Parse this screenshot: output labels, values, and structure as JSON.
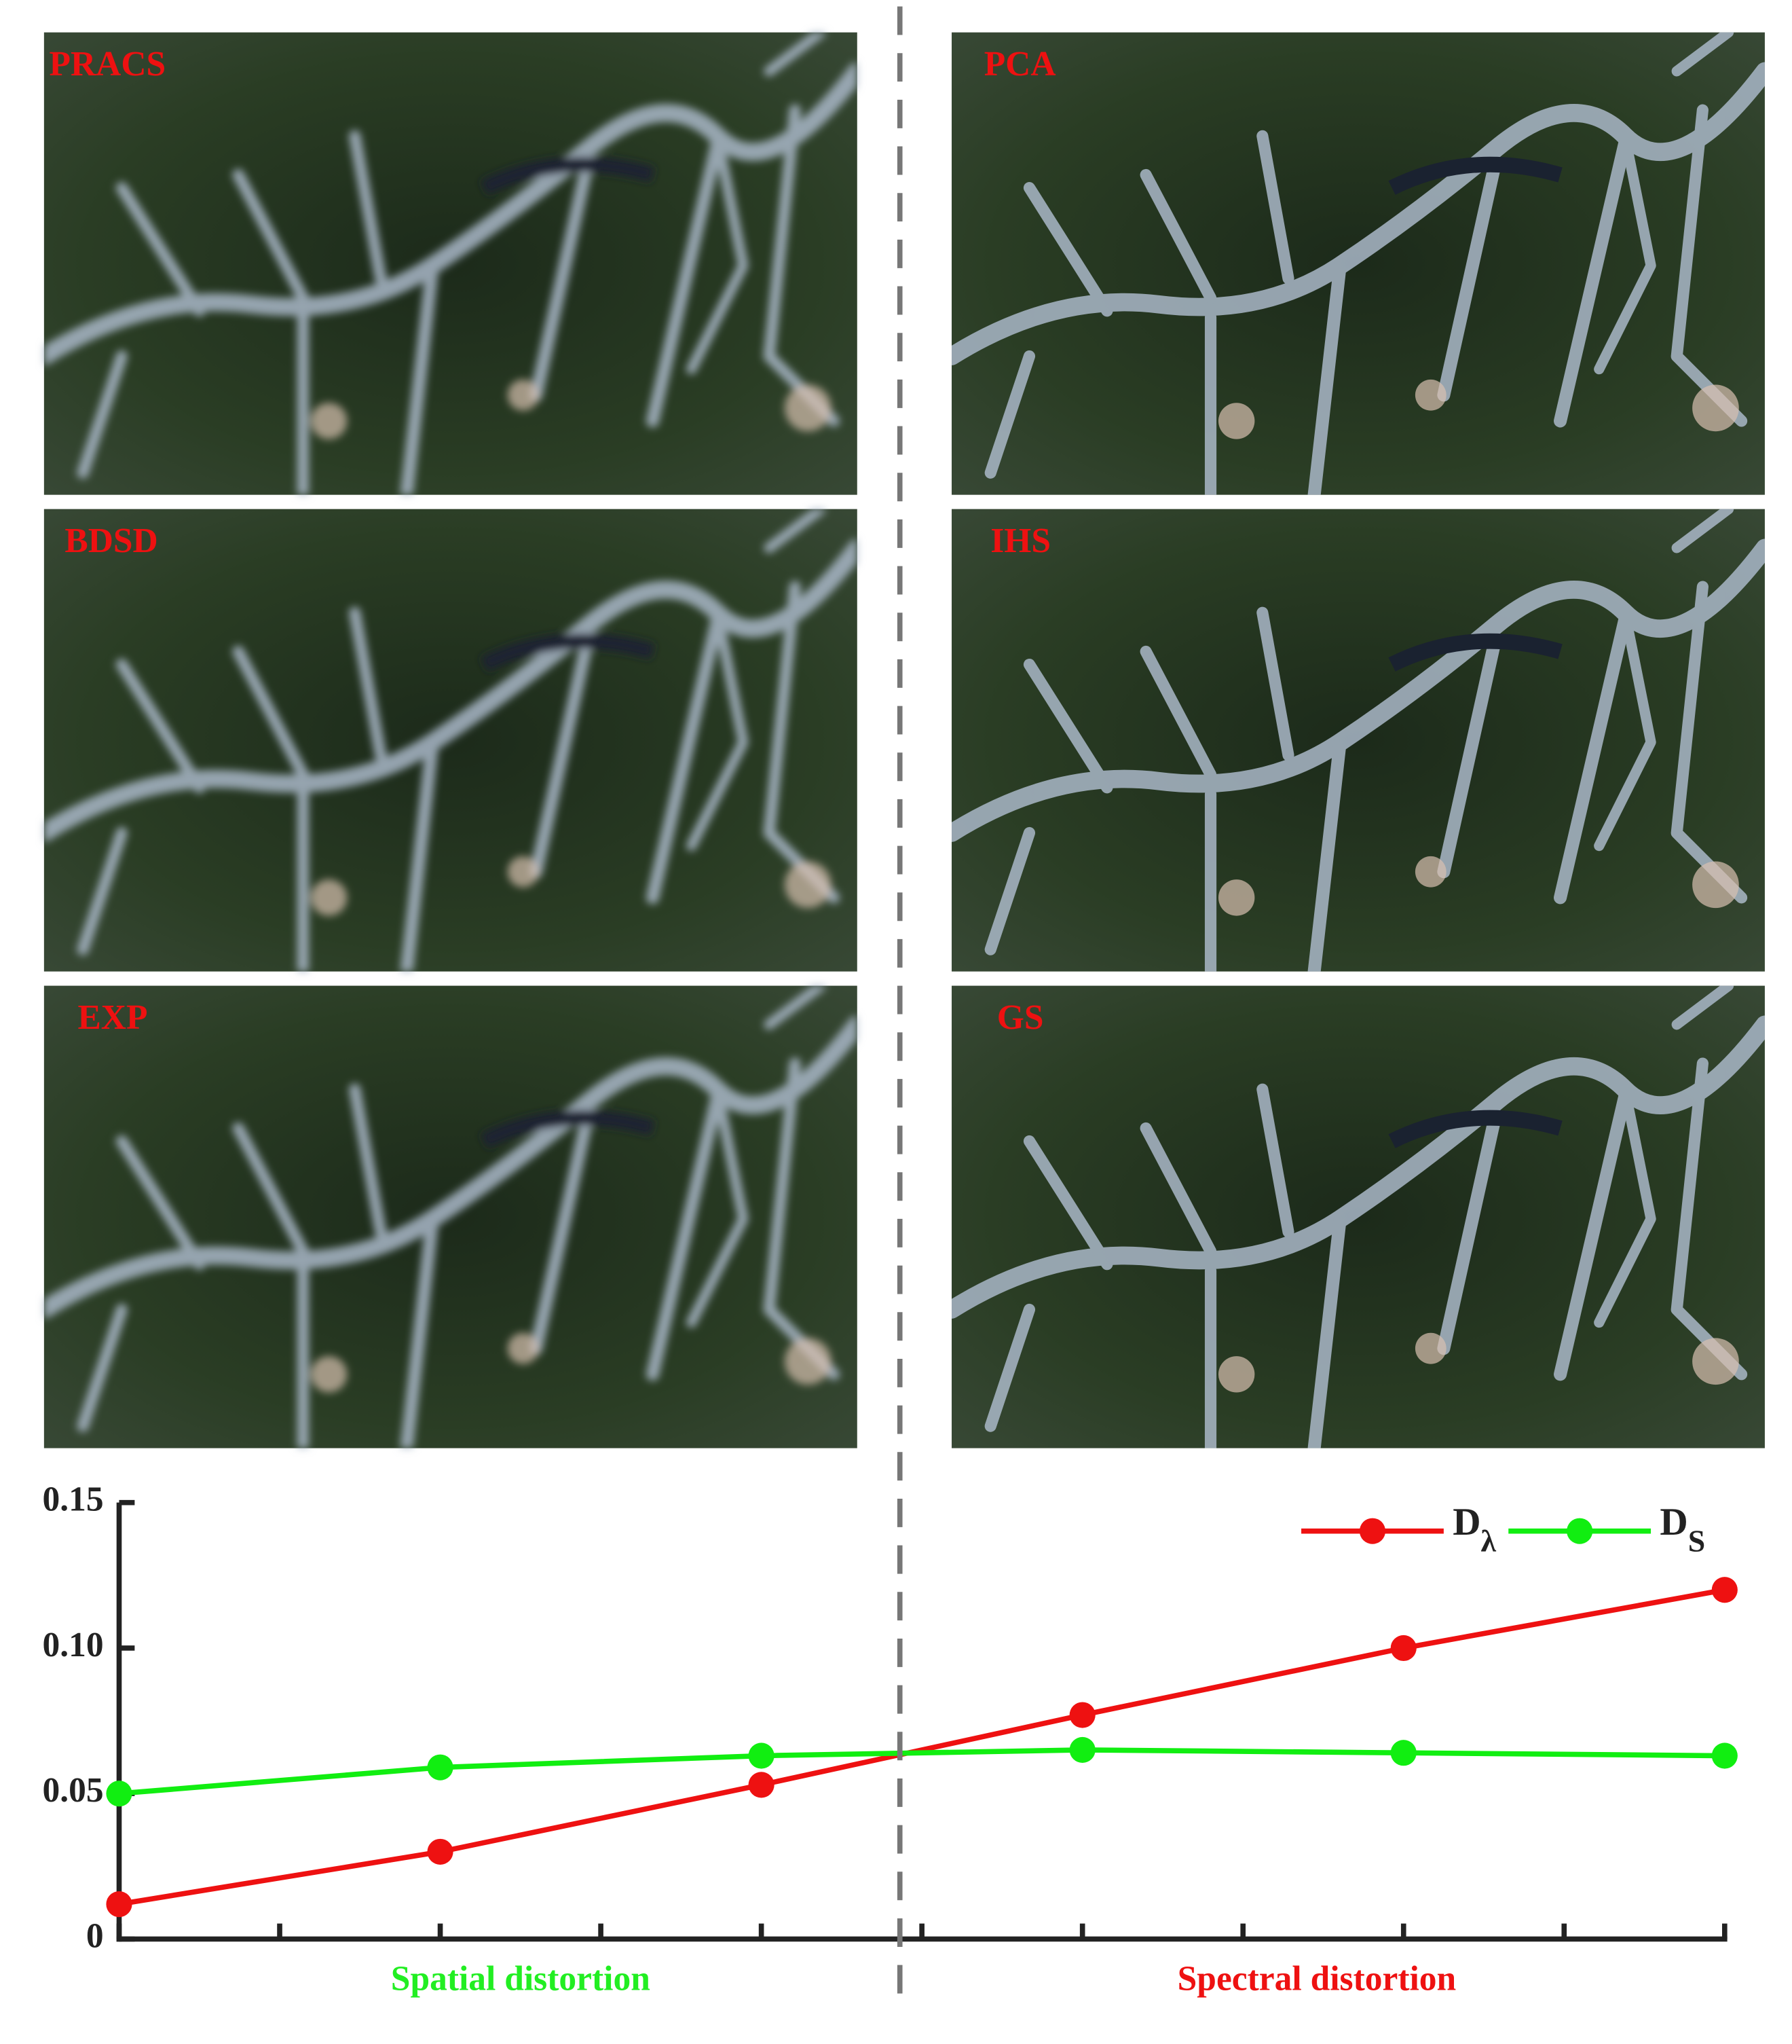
{
  "panels": [
    {
      "label": "PRACS"
    },
    {
      "label": "PCA"
    },
    {
      "label": "BDSD"
    },
    {
      "label": "IHS"
    },
    {
      "label": "EXP"
    },
    {
      "label": "GS"
    }
  ],
  "chart_data": {
    "type": "line",
    "x": [
      0,
      2,
      4,
      6,
      8,
      10
    ],
    "xlim": [
      0,
      10
    ],
    "xticks": [
      0,
      1,
      2,
      3,
      4,
      5,
      6,
      7,
      8,
      9,
      10
    ],
    "ylim": [
      0,
      0.15
    ],
    "yticks": [
      0,
      0.05,
      {
        "value": 0.1,
        "label": "0.10"
      },
      0.15
    ],
    "series": [
      {
        "name": "Dλ",
        "color": "#ee1111",
        "values": [
          0.012,
          0.03,
          0.053,
          0.077,
          0.1,
          0.12
        ]
      },
      {
        "name": "DS",
        "color": "#11ee11",
        "values": [
          0.05,
          0.059,
          0.063,
          0.065,
          0.064,
          0.063
        ]
      }
    ],
    "legend": "upper right",
    "annotations": [
      {
        "text": "Spatial distortion",
        "color": "#22ee22"
      },
      {
        "text": "Spectral distortion",
        "color": "#ee1111"
      }
    ]
  }
}
